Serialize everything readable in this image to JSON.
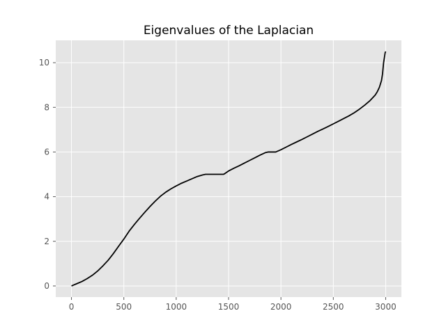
{
  "chart_data": {
    "type": "line",
    "title": "Eigenvalues of the Laplacian",
    "xlabel": "",
    "ylabel": "",
    "xlim": [
      -150,
      3150
    ],
    "ylim": [
      -0.5,
      11
    ],
    "xticks": [
      0,
      500,
      1000,
      1500,
      2000,
      2500,
      3000
    ],
    "yticks": [
      0,
      2,
      4,
      6,
      8,
      10
    ],
    "grid": true,
    "colors": {
      "plot_background": "#e5e5e5",
      "grid": "#ffffff",
      "line": "#000000",
      "tick_label": "#555555"
    },
    "series": [
      {
        "x": [
          0,
          50,
          100,
          150,
          200,
          250,
          300,
          350,
          400,
          450,
          500,
          550,
          600,
          650,
          700,
          750,
          800,
          850,
          900,
          950,
          1000,
          1050,
          1100,
          1150,
          1200,
          1250,
          1280,
          1300,
          1350,
          1400,
          1450,
          1460,
          1500,
          1550,
          1600,
          1650,
          1700,
          1750,
          1800,
          1850,
          1880,
          1900,
          1950,
          2000,
          2050,
          2100,
          2150,
          2200,
          2250,
          2300,
          2350,
          2400,
          2450,
          2500,
          2550,
          2600,
          2650,
          2700,
          2750,
          2800,
          2850,
          2900,
          2920,
          2940,
          2960,
          2970,
          2980,
          2990,
          2995,
          3000
        ],
        "y": [
          0,
          0.1,
          0.2,
          0.33,
          0.48,
          0.67,
          0.9,
          1.15,
          1.45,
          1.78,
          2.1,
          2.45,
          2.75,
          3.03,
          3.3,
          3.56,
          3.8,
          4.02,
          4.2,
          4.35,
          4.48,
          4.6,
          4.7,
          4.8,
          4.9,
          4.97,
          5.0,
          5.0,
          5.0,
          5.0,
          5.0,
          5.02,
          5.15,
          5.27,
          5.38,
          5.5,
          5.62,
          5.74,
          5.86,
          5.97,
          6.0,
          6.0,
          6.0,
          6.1,
          6.22,
          6.34,
          6.45,
          6.56,
          6.68,
          6.8,
          6.92,
          7.03,
          7.14,
          7.26,
          7.38,
          7.5,
          7.62,
          7.76,
          7.92,
          8.1,
          8.3,
          8.55,
          8.7,
          8.9,
          9.2,
          9.5,
          10.0,
          10.3,
          10.45,
          10.5
        ]
      }
    ]
  }
}
